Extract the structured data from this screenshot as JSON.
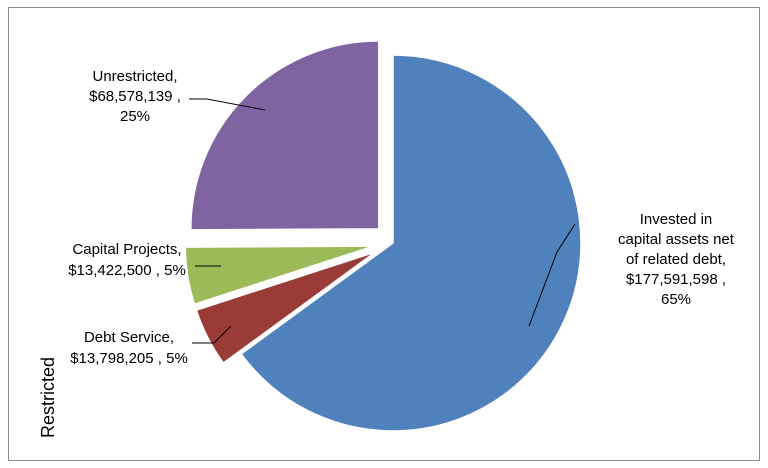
{
  "chart_data": {
    "type": "pie",
    "slices": [
      {
        "label_lines": [
          "Invested in",
          "capital assets net",
          "of related debt,",
          "$177,591,598 ,",
          "65%"
        ],
        "name": "Invested in capital assets net of related debt",
        "value": 177591598,
        "percent": 65,
        "color": "#4f81bd",
        "exploded": false
      },
      {
        "label_lines": [
          "Debt Service,",
          "$13,798,205 , 5%"
        ],
        "name": "Debt Service",
        "value": 13798205,
        "percent": 5,
        "color": "#9b3b38",
        "exploded": true
      },
      {
        "label_lines": [
          "Capital Projects,",
          "$13,422,500 , 5%"
        ],
        "name": "Capital Projects",
        "value": 13422500,
        "percent": 5,
        "color": "#9bbb59",
        "exploded": true
      },
      {
        "label_lines": [
          "Unrestricted,",
          "$68,578,139 ,",
          "25%"
        ],
        "name": "Unrestricted",
        "value": 68578139,
        "percent": 25,
        "color": "#8064a2",
        "exploded": true
      }
    ],
    "side_label": "Restricted",
    "legend": "none"
  }
}
